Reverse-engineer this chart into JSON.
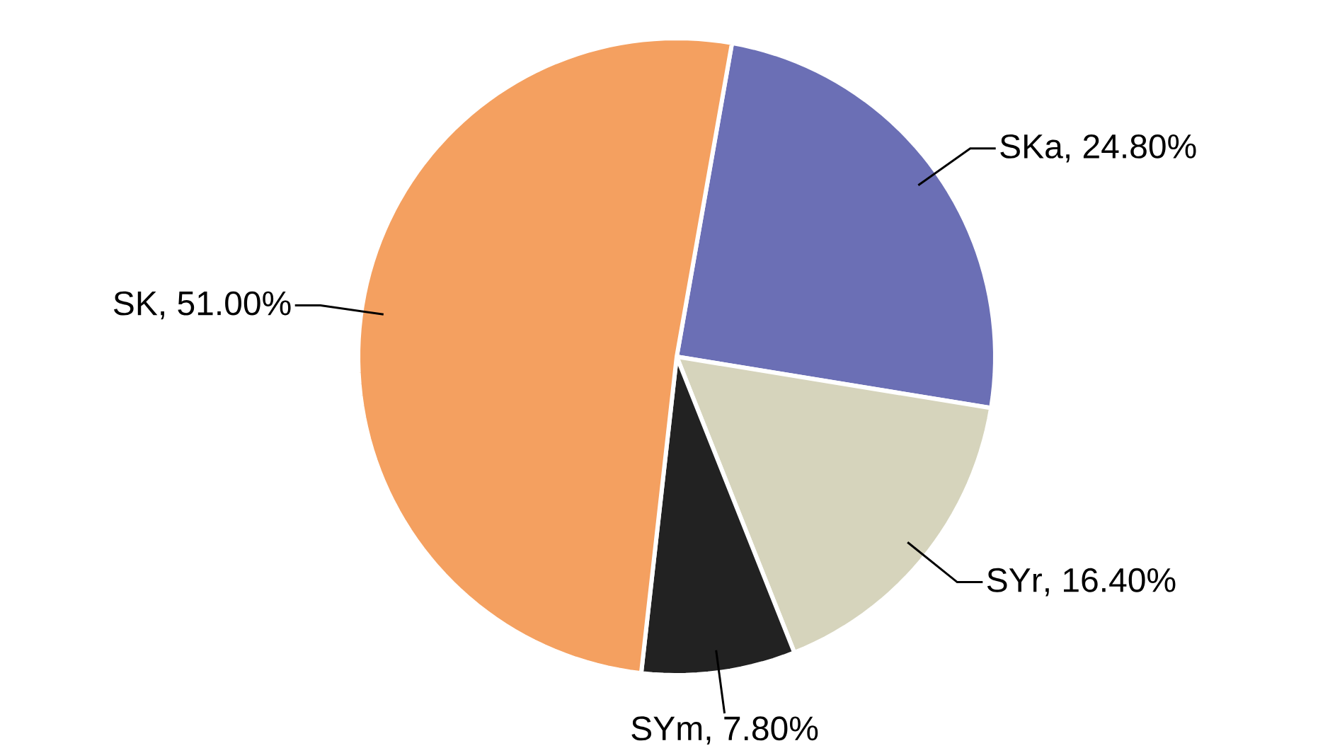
{
  "chart_data": {
    "type": "pie",
    "categories": [
      "SKa",
      "SYr",
      "SYm",
      "SK"
    ],
    "values": [
      24.8,
      16.4,
      7.8,
      51.0
    ],
    "value_labels": [
      ", 24.80%",
      ", 16.40%",
      ", 7.80%",
      ", 51.00%"
    ],
    "colors": [
      "#6b6fb5",
      "#d6d4bc",
      "#222222",
      "#f4a060"
    ]
  }
}
